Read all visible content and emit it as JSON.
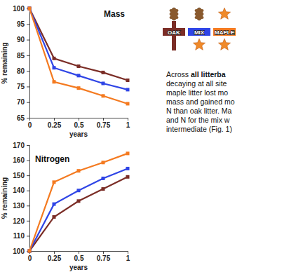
{
  "chart_data": [
    {
      "type": "line",
      "title": "Mass",
      "x_label": "years",
      "y_label": "% remaining",
      "x": [
        0,
        0.25,
        0.5,
        0.75,
        1
      ],
      "xlim": [
        0,
        1
      ],
      "xticks": [
        0,
        0.25,
        0.5,
        0.75,
        1
      ],
      "ylim": [
        65,
        100
      ],
      "yticks": [
        65,
        70,
        75,
        80,
        85,
        90,
        95,
        100
      ],
      "grid": false,
      "marker": "square",
      "series": [
        {
          "color": "#7b2d26",
          "values": [
            100,
            84,
            81.5,
            79.5,
            77
          ]
        },
        {
          "color": "#2f45e6",
          "values": [
            100,
            81,
            78.5,
            76,
            74
          ]
        },
        {
          "color": "#f47a20",
          "values": [
            100,
            76.5,
            74.5,
            72,
            69.5
          ]
        }
      ]
    },
    {
      "type": "line",
      "title": "Nitrogen",
      "x_label": "years",
      "y_label": "% remaining",
      "x": [
        0,
        0.25,
        0.5,
        0.75,
        1
      ],
      "xlim": [
        0,
        1
      ],
      "xticks": [
        0,
        0.25,
        0.5,
        0.75,
        1
      ],
      "ylim": [
        100,
        170
      ],
      "yticks": [
        100,
        110,
        120,
        130,
        140,
        150,
        160,
        170
      ],
      "grid": false,
      "marker": "square",
      "series": [
        {
          "color": "#7b2d26",
          "values": [
            100,
            122.5,
            133,
            141,
            149
          ]
        },
        {
          "color": "#2f45e6",
          "values": [
            100,
            131,
            140,
            148,
            154.5
          ]
        },
        {
          "color": "#f47a20",
          "values": [
            100,
            145.5,
            153,
            158.5,
            164.5
          ]
        }
      ]
    }
  ],
  "key": {
    "items": [
      {
        "label": "OAK",
        "color": "#7b2d26"
      },
      {
        "label": "MIX",
        "color": "#2f45e6"
      },
      {
        "label": "MAPLE",
        "color": "#f47a20"
      }
    ]
  },
  "text_block": {
    "lines": [
      [
        {
          "text": "Across "
        },
        {
          "text": "all litterba",
          "bold": true
        }
      ],
      [
        {
          "text": "decaying at all site"
        }
      ],
      [
        {
          "text": "maple litter lost mo"
        }
      ],
      [
        {
          "text": "mass and gained mo"
        }
      ],
      [
        {
          "text": "N than oak litter. Ma"
        }
      ],
      [
        {
          "text": "and N for the mix w"
        }
      ],
      [
        {
          "text": "intermediate (Fig. 1)"
        }
      ]
    ]
  }
}
